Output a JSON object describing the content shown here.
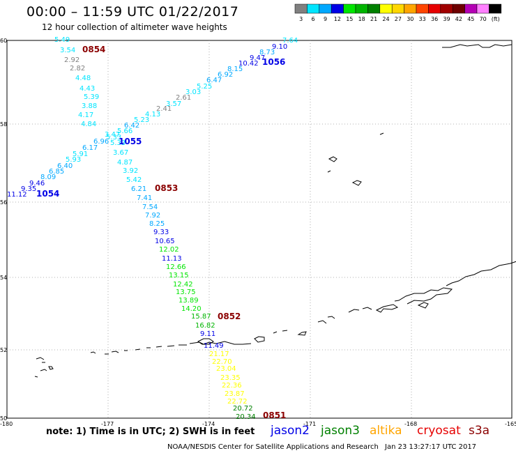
{
  "header": {
    "title": "00:00 – 11:59 UTC 01/22/2017",
    "subtitle": "12 hour collection of altimeter wave heights"
  },
  "legend": {
    "unit": "(ft)",
    "bins": [
      {
        "label": "3",
        "color": "#808080"
      },
      {
        "label": "6",
        "color": "#00e5ff"
      },
      {
        "label": "9",
        "color": "#00a8ff"
      },
      {
        "label": "12",
        "color": "#0000e6"
      },
      {
        "label": "15",
        "color": "#00e600"
      },
      {
        "label": "18",
        "color": "#00b400"
      },
      {
        "label": "21",
        "color": "#008000"
      },
      {
        "label": "24",
        "color": "#ffff00"
      },
      {
        "label": "27",
        "color": "#ffd700"
      },
      {
        "label": "30",
        "color": "#ffa500"
      },
      {
        "label": "33",
        "color": "#ff4500"
      },
      {
        "label": "36",
        "color": "#e60000"
      },
      {
        "label": "39",
        "color": "#a00000"
      },
      {
        "label": "42",
        "color": "#6e0000"
      },
      {
        "label": "45",
        "color": "#b400b4"
      },
      {
        "label": "70",
        "color": "#ff80ff"
      },
      {
        "label": "",
        "color": "#000000"
      }
    ]
  },
  "axes": {
    "lon_ticks": [
      "-180",
      "-177",
      "-174",
      "-171",
      "-168",
      "-165"
    ],
    "lat_ticks": [
      "60",
      "58",
      "56",
      "54",
      "52",
      "50"
    ]
  },
  "tracks": [
    {
      "pass": "0854",
      "pass_color": "#8b0000",
      "points": [
        {
          "v": "5.49",
          "c": "#00e5ff"
        },
        {
          "v": "3.54",
          "c": "#00e5ff"
        },
        {
          "v": "2.92",
          "c": "#808080"
        },
        {
          "v": "2.82",
          "c": "#808080"
        },
        {
          "v": "4.48",
          "c": "#00e5ff"
        },
        {
          "v": "4.43",
          "c": "#00e5ff"
        },
        {
          "v": "5.39",
          "c": "#00e5ff"
        },
        {
          "v": "3.88",
          "c": "#00e5ff"
        },
        {
          "v": "4.17",
          "c": "#00e5ff"
        },
        {
          "v": "4.84",
          "c": "#00e5ff"
        },
        {
          "v": "3.47",
          "c": "#00e5ff"
        },
        {
          "v": "5.33",
          "c": "#00e5ff"
        },
        {
          "v": "3.67",
          "c": "#00e5ff"
        },
        {
          "v": "4.87",
          "c": "#00e5ff"
        },
        {
          "v": "3.92",
          "c": "#00e5ff"
        },
        {
          "v": "5.42",
          "c": "#00e5ff"
        },
        {
          "v": "6.21",
          "c": "#00a8ff"
        }
      ]
    },
    {
      "pass": "0853",
      "pass_color": "#8b0000",
      "points": [
        {
          "v": "7.41",
          "c": "#00a8ff"
        },
        {
          "v": "7.54",
          "c": "#00a8ff"
        },
        {
          "v": "7.92",
          "c": "#00a8ff"
        },
        {
          "v": "8.25",
          "c": "#00a8ff"
        },
        {
          "v": "9.33",
          "c": "#0000e6"
        },
        {
          "v": "10.65",
          "c": "#0000e6"
        },
        {
          "v": "12.02",
          "c": "#00e600"
        },
        {
          "v": "11.13",
          "c": "#0000e6"
        },
        {
          "v": "12.66",
          "c": "#00e600"
        },
        {
          "v": "13.15",
          "c": "#00e600"
        },
        {
          "v": "12.42",
          "c": "#00e600"
        },
        {
          "v": "13.75",
          "c": "#00e600"
        },
        {
          "v": "13.89",
          "c": "#00e600"
        },
        {
          "v": "14.20",
          "c": "#00e600"
        },
        {
          "v": "15.87",
          "c": "#00b400"
        }
      ]
    },
    {
      "pass": "0852",
      "pass_color": "#8b0000",
      "points": [
        {
          "v": "16.82",
          "c": "#00b400"
        },
        {
          "v": "9.11",
          "c": "#0000e6"
        },
        {
          "v": "11.49",
          "c": "#0000e6"
        },
        {
          "v": "21.17",
          "c": "#ffff00"
        },
        {
          "v": "22.70",
          "c": "#ffff00"
        },
        {
          "v": "23.04",
          "c": "#ffff00"
        },
        {
          "v": "23.35",
          "c": "#ffff00"
        },
        {
          "v": "22.36",
          "c": "#ffff00"
        },
        {
          "v": "23.87",
          "c": "#ffff00"
        },
        {
          "v": "22.72",
          "c": "#ffff00"
        },
        {
          "v": "20.72",
          "c": "#008000"
        },
        {
          "v": "20.34",
          "c": "#008000"
        }
      ]
    },
    {
      "pass": "0851",
      "pass_color": "#8b0000",
      "points": []
    },
    {
      "pass": "1056",
      "pass_color": "#0000e6",
      "points": [
        {
          "v": "7.64",
          "c": "#00e5ff"
        },
        {
          "v": "9.10",
          "c": "#0000e6"
        },
        {
          "v": "8.73",
          "c": "#00a8ff"
        },
        {
          "v": "9.47",
          "c": "#0000e6"
        },
        {
          "v": "10.42",
          "c": "#0000e6"
        },
        {
          "v": "8.15",
          "c": "#00a8ff"
        },
        {
          "v": "6.92",
          "c": "#00a8ff"
        },
        {
          "v": "6.47",
          "c": "#00a8ff"
        },
        {
          "v": "5.25",
          "c": "#00e5ff"
        },
        {
          "v": "3.03",
          "c": "#00e5ff"
        },
        {
          "v": "2.61",
          "c": "#808080"
        },
        {
          "v": "3.57",
          "c": "#00e5ff"
        },
        {
          "v": "2.41",
          "c": "#808080"
        },
        {
          "v": "4.13",
          "c": "#00e5ff"
        },
        {
          "v": "5.23",
          "c": "#00e5ff"
        },
        {
          "v": "6.42",
          "c": "#00a8ff"
        },
        {
          "v": "5.66",
          "c": "#00e5ff"
        },
        {
          "v": "5.33",
          "c": "#00e5ff"
        }
      ]
    },
    {
      "pass": "1055",
      "pass_color": "#0000e6",
      "points": [
        {
          "v": "6.96",
          "c": "#00a8ff"
        },
        {
          "v": "6.17",
          "c": "#00a8ff"
        },
        {
          "v": "5.91",
          "c": "#00e5ff"
        },
        {
          "v": "5.93",
          "c": "#00e5ff"
        },
        {
          "v": "6.40",
          "c": "#00a8ff"
        },
        {
          "v": "6.85",
          "c": "#00a8ff"
        },
        {
          "v": "8.09",
          "c": "#00a8ff"
        },
        {
          "v": "9.46",
          "c": "#0000e6"
        },
        {
          "v": "9.35",
          "c": "#0000e6"
        },
        {
          "v": "11.12",
          "c": "#0000e6"
        }
      ]
    },
    {
      "pass": "1054",
      "pass_color": "#0000e6",
      "points": []
    }
  ],
  "footer": {
    "note": "note: 1) Time is in UTC; 2) SWH is in feet",
    "satellites": [
      {
        "name": "jason2",
        "color": "#0000e6"
      },
      {
        "name": "jason3",
        "color": "#008000"
      },
      {
        "name": "altika",
        "color": "#ffa500"
      },
      {
        "name": "cryosat",
        "color": "#e60000"
      },
      {
        "name": "s3a",
        "color": "#8b0000"
      }
    ],
    "credit": "NOAA/NESDIS Center for Satellite Applications and Research",
    "timestamp": "Jan 23 13:27:17 UTC 2017"
  }
}
